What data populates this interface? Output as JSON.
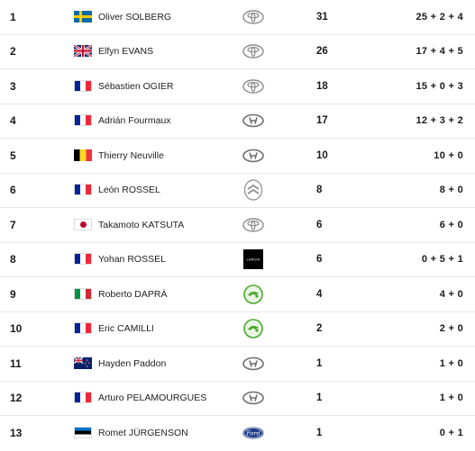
{
  "rows": [
    {
      "pos": "1",
      "flag": "se",
      "name": "Oliver SOLBERG",
      "brand": "toyota-icon",
      "points": "31",
      "detail": "25 + 2 + 4"
    },
    {
      "pos": "2",
      "flag": "gb",
      "name": "Elfyn EVANS",
      "brand": "toyota-icon",
      "points": "26",
      "detail": "17 + 4 + 5"
    },
    {
      "pos": "3",
      "flag": "fr",
      "name": "Sébastien OGIER",
      "brand": "toyota-icon",
      "points": "18",
      "detail": "15 + 0 + 3"
    },
    {
      "pos": "4",
      "flag": "fr",
      "name": "Adrián Fourmaux",
      "brand": "hyundai-icon",
      "points": "17",
      "detail": "12 + 3 + 2"
    },
    {
      "pos": "5",
      "flag": "be",
      "name": "Thierry Neuville",
      "brand": "hyundai-icon",
      "points": "10",
      "detail": "10 + 0"
    },
    {
      "pos": "6",
      "flag": "fr",
      "name": "León ROSSEL",
      "brand": "citroen-icon",
      "points": "8",
      "detail": "8 + 0"
    },
    {
      "pos": "7",
      "flag": "jp",
      "name": "Takamoto KATSUTA",
      "brand": "toyota-icon",
      "points": "6",
      "detail": "6 + 0"
    },
    {
      "pos": "8",
      "flag": "fr",
      "name": "Yohan ROSSEL",
      "brand": "lancia-icon",
      "points": "6",
      "detail": "0 + 5 + 1"
    },
    {
      "pos": "9",
      "flag": "it",
      "name": "Roberto DAPRÀ",
      "brand": "skoda-icon",
      "points": "4",
      "detail": "4 + 0"
    },
    {
      "pos": "10",
      "flag": "fr",
      "name": "Eric CAMILLI",
      "brand": "skoda-icon",
      "points": "2",
      "detail": "2 + 0"
    },
    {
      "pos": "11",
      "flag": "nz",
      "name": "Hayden Paddon",
      "brand": "hyundai-icon",
      "points": "1",
      "detail": "1 + 0"
    },
    {
      "pos": "12",
      "flag": "fr",
      "name": "Arturo PELAMOURGUES",
      "brand": "hyundai-icon",
      "points": "1",
      "detail": "1 + 0"
    },
    {
      "pos": "13",
      "flag": "ee",
      "name": "Romet JÜRGENSON",
      "brand": "ford-icon",
      "points": "1",
      "detail": "0 + 1"
    }
  ],
  "lancia_text": "LANCIA",
  "ford_text": "Ford",
  "colors": {
    "row_border": "#e6e6e6",
    "skoda_green": "#4ba82e",
    "ford_blue": "#1f3c88"
  }
}
